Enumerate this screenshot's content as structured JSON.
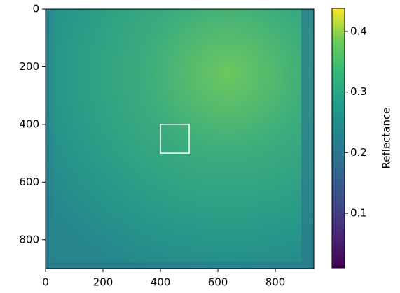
{
  "chart_data": {
    "type": "image",
    "xlim": [
      0,
      934
    ],
    "ylim": [
      900,
      0
    ],
    "xticks": [
      0,
      200,
      400,
      600,
      800
    ],
    "yticks": [
      0,
      200,
      400,
      600,
      800
    ],
    "rectangle": {
      "x": [
        400,
        500
      ],
      "y": [
        400,
        500
      ],
      "color": "#ffffff"
    },
    "colorbar": {
      "label": "Reflectance",
      "colormap": "viridis",
      "clim": [
        0.01,
        0.438
      ],
      "ticks": [
        0.1,
        0.2,
        0.3,
        0.4
      ]
    }
  }
}
